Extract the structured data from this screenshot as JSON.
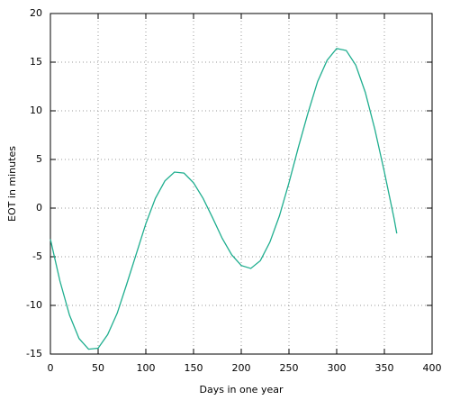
{
  "chart_data": {
    "type": "line",
    "xlabel": "Days in one year",
    "ylabel": "EOT in minutes",
    "x": [
      0,
      10,
      20,
      30,
      40,
      50,
      60,
      70,
      80,
      90,
      100,
      110,
      120,
      130,
      140,
      150,
      160,
      170,
      180,
      190,
      200,
      210,
      220,
      230,
      240,
      250,
      260,
      270,
      280,
      290,
      300,
      310,
      320,
      330,
      340,
      350,
      360,
      363
    ],
    "series": [
      {
        "color": "#1fae8f",
        "values": [
          -3.2,
          -7.5,
          -11.0,
          -13.4,
          -14.5,
          -14.4,
          -13.0,
          -10.8,
          -7.8,
          -4.7,
          -1.6,
          1.0,
          2.8,
          3.7,
          3.6,
          2.6,
          1.0,
          -1.0,
          -3.1,
          -4.8,
          -5.9,
          -6.2,
          -5.4,
          -3.5,
          -0.8,
          2.6,
          6.3,
          9.8,
          13.0,
          15.2,
          16.4,
          16.2,
          14.7,
          11.9,
          8.1,
          3.7,
          -1.0,
          -2.6
        ]
      }
    ],
    "xlim": [
      0,
      400
    ],
    "xticks": [
      0,
      50,
      100,
      150,
      200,
      250,
      300,
      350,
      400
    ],
    "ylim": [
      -15,
      20
    ],
    "yticks": [
      -15,
      -10,
      -5,
      0,
      5,
      10,
      15,
      20
    ],
    "grid": true
  }
}
